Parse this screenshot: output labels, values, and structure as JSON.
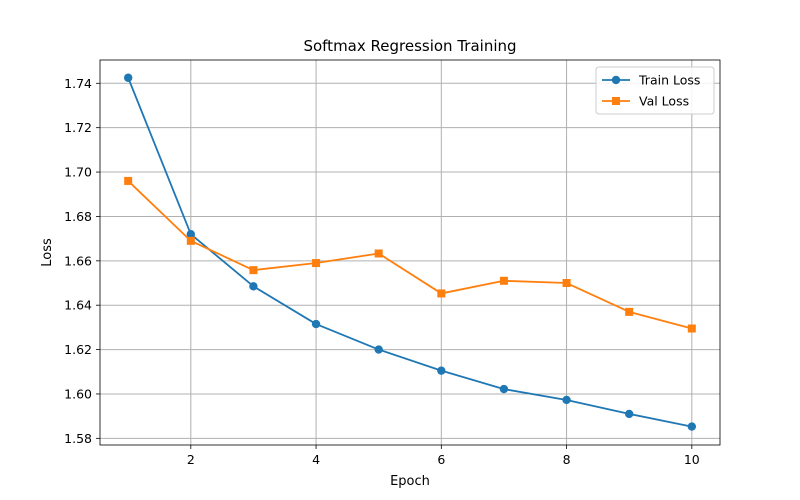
{
  "chart_data": {
    "type": "line",
    "title": "Softmax Regression Training",
    "xlabel": "Epoch",
    "ylabel": "Loss",
    "x": [
      1,
      2,
      3,
      4,
      5,
      6,
      7,
      8,
      9,
      10
    ],
    "xlim": [
      0.55,
      10.45
    ],
    "ylim": [
      1.577,
      1.7505
    ],
    "xticks": [
      2,
      4,
      6,
      8,
      10
    ],
    "yticks": [
      1.58,
      1.6,
      1.62,
      1.64,
      1.66,
      1.68,
      1.7,
      1.72,
      1.74
    ],
    "grid": true,
    "legend_position": "top-right",
    "series": [
      {
        "name": "Train Loss",
        "color": "#1f77b4",
        "marker": "circle",
        "values": [
          1.7425,
          1.672,
          1.6485,
          1.6315,
          1.62,
          1.6105,
          1.6022,
          1.5973,
          1.591,
          1.5853
        ]
      },
      {
        "name": "Val Loss",
        "color": "#ff7f0e",
        "marker": "square",
        "values": [
          1.696,
          1.669,
          1.6558,
          1.659,
          1.6633,
          1.6453,
          1.651,
          1.65,
          1.637,
          1.6295
        ]
      }
    ]
  }
}
